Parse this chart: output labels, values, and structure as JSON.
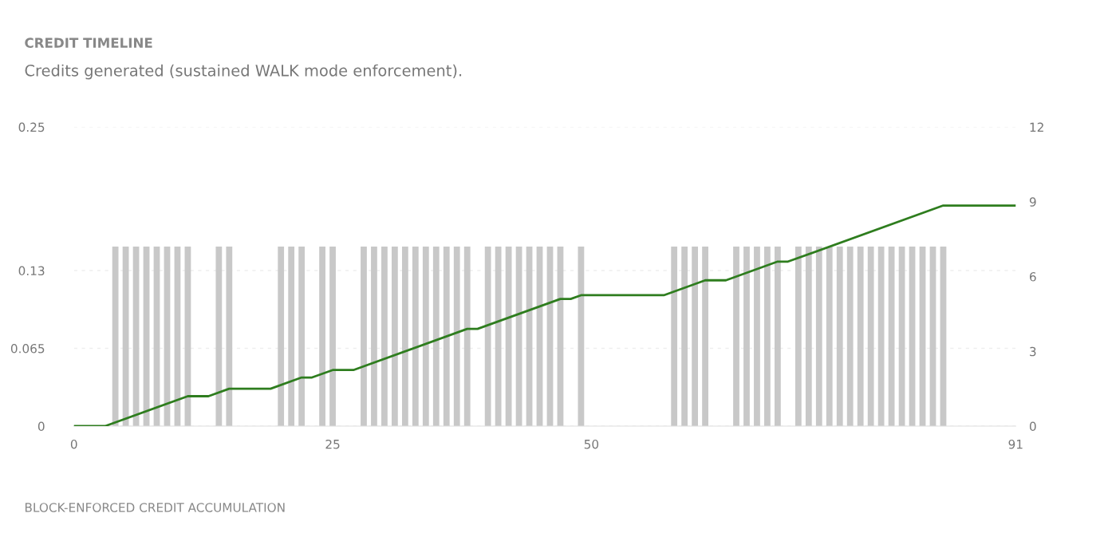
{
  "chart_data": {
    "type": "bar",
    "title": "CREDIT TIMELINE",
    "subtitle": "Credits generated (sustained WALK mode enforcement).",
    "annotations": [
      "BLOCK-ENFORCED CREDIT ACCUMULATION"
    ],
    "xlim": [
      0,
      91
    ],
    "xticks": [
      0,
      25,
      50,
      91
    ],
    "ylim": [
      0,
      0.25
    ],
    "yticks": [
      0,
      0.065,
      0.13,
      0.25
    ],
    "y2lim": [
      0,
      12
    ],
    "y2ticks": [
      0,
      3,
      6,
      9,
      12
    ],
    "grid": "y",
    "series": [
      {
        "color": "#c8c8c8",
        "x": [
          4,
          5,
          6,
          7,
          8,
          9,
          10,
          11,
          14,
          15,
          20,
          21,
          22,
          24,
          25,
          28,
          29,
          30,
          31,
          32,
          33,
          34,
          35,
          36,
          37,
          38,
          40,
          41,
          42,
          43,
          44,
          45,
          46,
          47,
          49,
          58,
          59,
          60,
          61,
          64,
          65,
          66,
          67,
          68,
          70,
          71,
          72,
          73,
          74,
          75,
          76,
          77,
          78,
          79,
          80,
          81,
          82,
          83,
          84
        ],
        "values": [
          0.15,
          0.15,
          0.15,
          0.15,
          0.15,
          0.15,
          0.15,
          0.15,
          0.15,
          0.15,
          0.15,
          0.15,
          0.15,
          0.15,
          0.15,
          0.15,
          0.15,
          0.15,
          0.15,
          0.15,
          0.15,
          0.15,
          0.15,
          0.15,
          0.15,
          0.15,
          0.15,
          0.15,
          0.15,
          0.15,
          0.15,
          0.15,
          0.15,
          0.15,
          0.15,
          0.15,
          0.15,
          0.15,
          0.15,
          0.15,
          0.15,
          0.15,
          0.15,
          0.15,
          0.15,
          0.15,
          0.15,
          0.15,
          0.15,
          0.15,
          0.15,
          0.15,
          0.15,
          0.15,
          0.15,
          0.15,
          0.15,
          0.15,
          0.15
        ]
      },
      {
        "type": "line",
        "axis": "y2",
        "color": "#2e7d1e",
        "x": [
          0,
          3,
          11,
          13,
          15,
          19,
          22,
          23,
          25,
          27,
          38,
          39,
          47,
          48,
          49,
          57,
          61,
          63,
          68,
          69,
          84,
          91
        ],
        "values": [
          0,
          0,
          1.2,
          1.2,
          1.5,
          1.5,
          1.95,
          1.95,
          2.25,
          2.25,
          3.9,
          3.9,
          5.1,
          5.1,
          5.25,
          5.25,
          5.85,
          5.85,
          6.6,
          6.6,
          8.85,
          8.85
        ]
      }
    ]
  }
}
